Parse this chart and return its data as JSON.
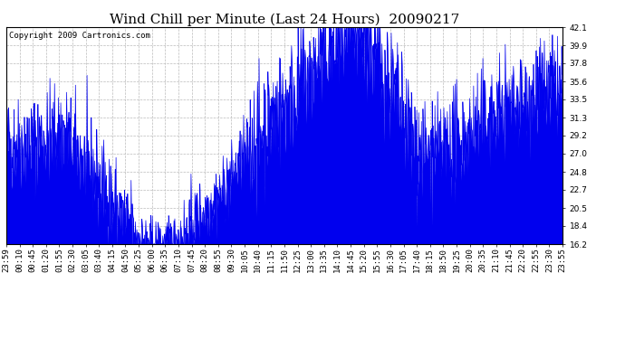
{
  "title": "Wind Chill per Minute (Last 24 Hours)  20090217",
  "copyright_text": "Copyright 2009 Cartronics.com",
  "line_color": "#0000ee",
  "fill_color": "#0000ee",
  "background_color": "#ffffff",
  "plot_bg_color": "#ffffff",
  "grid_color": "#bbbbbb",
  "ylim": [
    16.2,
    42.1
  ],
  "yticks": [
    16.2,
    18.4,
    20.5,
    22.7,
    24.8,
    27.0,
    29.2,
    31.3,
    33.5,
    35.6,
    37.8,
    39.9,
    42.1
  ],
  "xtick_labels": [
    "23:59",
    "00:10",
    "00:45",
    "01:20",
    "01:55",
    "02:30",
    "03:05",
    "03:40",
    "04:15",
    "04:50",
    "05:25",
    "06:00",
    "06:35",
    "07:10",
    "07:45",
    "08:20",
    "08:55",
    "09:30",
    "10:05",
    "10:40",
    "11:15",
    "11:50",
    "12:25",
    "13:00",
    "13:35",
    "14:10",
    "14:45",
    "15:20",
    "15:55",
    "16:30",
    "17:05",
    "17:40",
    "18:15",
    "18:50",
    "19:25",
    "20:00",
    "20:35",
    "21:10",
    "21:45",
    "22:20",
    "22:55",
    "23:30",
    "23:55"
  ],
  "title_fontsize": 11,
  "tick_fontsize": 6.5,
  "copyright_fontsize": 6.5,
  "line_width": 0.5
}
